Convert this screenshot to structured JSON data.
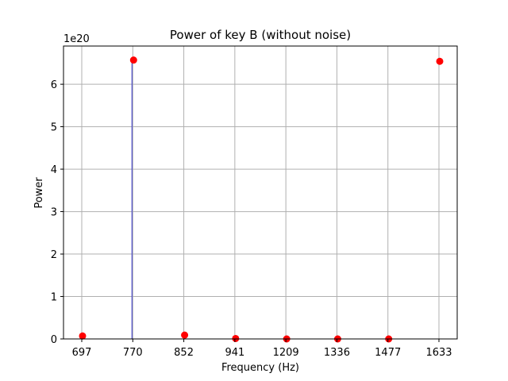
{
  "chart_data": {
    "type": "scatter",
    "title": "Power of key B (without noise)",
    "xlabel": "Frequency (Hz)",
    "ylabel": "Power",
    "y_multiplier": "1e20",
    "categories": [
      "697",
      "770",
      "852",
      "941",
      "1209",
      "1336",
      "1477",
      "1633"
    ],
    "values": [
      0.07,
      6.57,
      0.09,
      0.01,
      0.0,
      0.0,
      0.0,
      6.54
    ],
    "ylim": [
      0,
      6.9
    ],
    "yticks": [
      "0",
      "1",
      "2",
      "3",
      "4",
      "5",
      "6"
    ],
    "grid": true,
    "stem_category": "770",
    "point_color": "#ff0000",
    "stem_color": "#4c4cc8"
  }
}
